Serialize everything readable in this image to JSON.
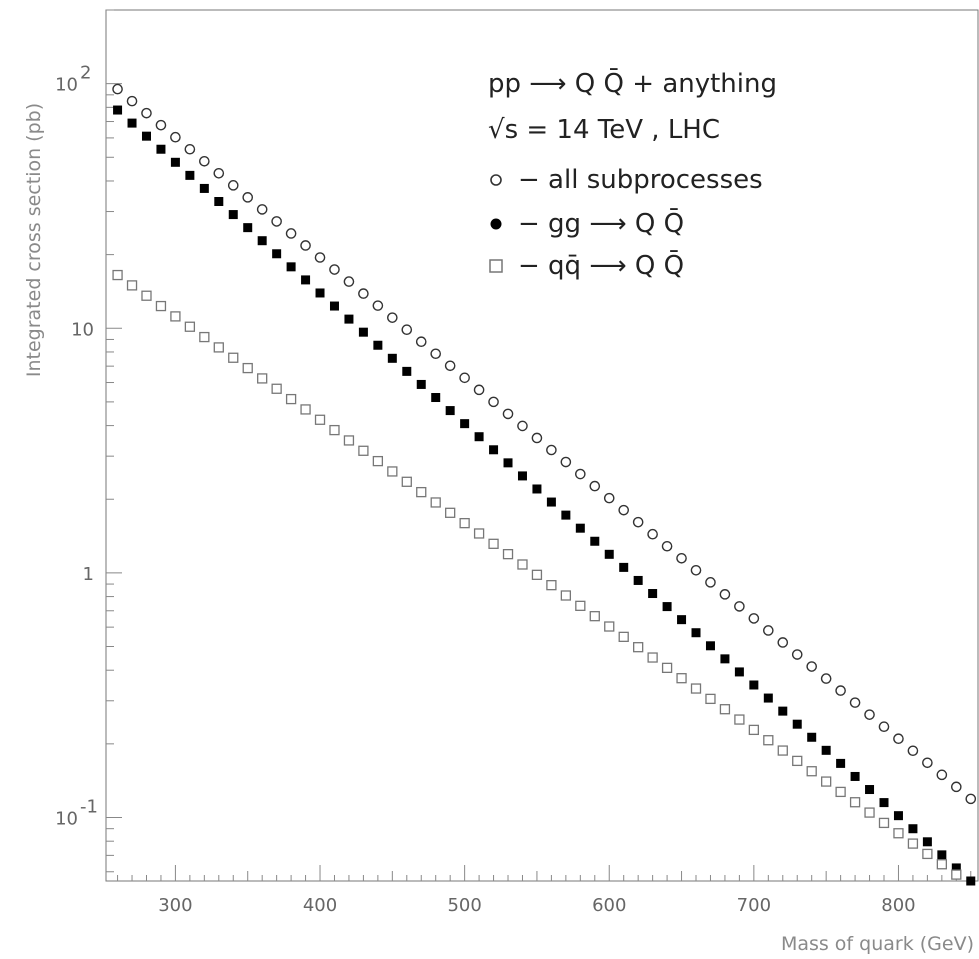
{
  "chart_data": {
    "type": "scatter",
    "xlabel": "Mass of quark (GeV)",
    "ylabel": "Integrated cross section (pb)",
    "x_scale": "linear",
    "y_scale": "log",
    "xlim": [
      252,
      855
    ],
    "ylim": [
      0.055,
      200
    ],
    "x_ticks": [
      300,
      400,
      500,
      600,
      700,
      800
    ],
    "x_tick_labels": [
      "300",
      "400",
      "500",
      "600",
      "700",
      "800"
    ],
    "y_major_ticks": [
      0.1,
      1,
      10,
      100
    ],
    "y_tick_labels": [
      {
        "value": 0.1,
        "base": "10",
        "exp": "-1"
      },
      {
        "value": 1,
        "base": "1",
        "exp": ""
      },
      {
        "value": 10,
        "base": "10",
        "exp": ""
      },
      {
        "value": 100,
        "base": "10",
        "exp": "2"
      }
    ],
    "annotations": [
      {
        "line": 1,
        "text": "pp ⟶ Q Q̄ + anything"
      },
      {
        "line": 2,
        "text": "√s = 14 TeV , LHC"
      }
    ],
    "legend_placement": "top-right",
    "grid": false,
    "series": [
      {
        "name": "− all subprocesses",
        "marker": "open-circle",
        "color": "#333333",
        "x": [
          260,
          870
        ],
        "y": [
          95,
          0.095
        ]
      },
      {
        "name": "− gg ⟶ Q Q̄",
        "marker": "filled-square",
        "color": "#000000",
        "x": [
          260,
          850
        ],
        "y": [
          78,
          0.055
        ]
      },
      {
        "name": "− qq̄ ⟶ Q Q̄",
        "marker": "open-square",
        "color": "#777777",
        "x": [
          260,
          850
        ],
        "y": [
          16.5,
          0.053
        ]
      }
    ]
  }
}
